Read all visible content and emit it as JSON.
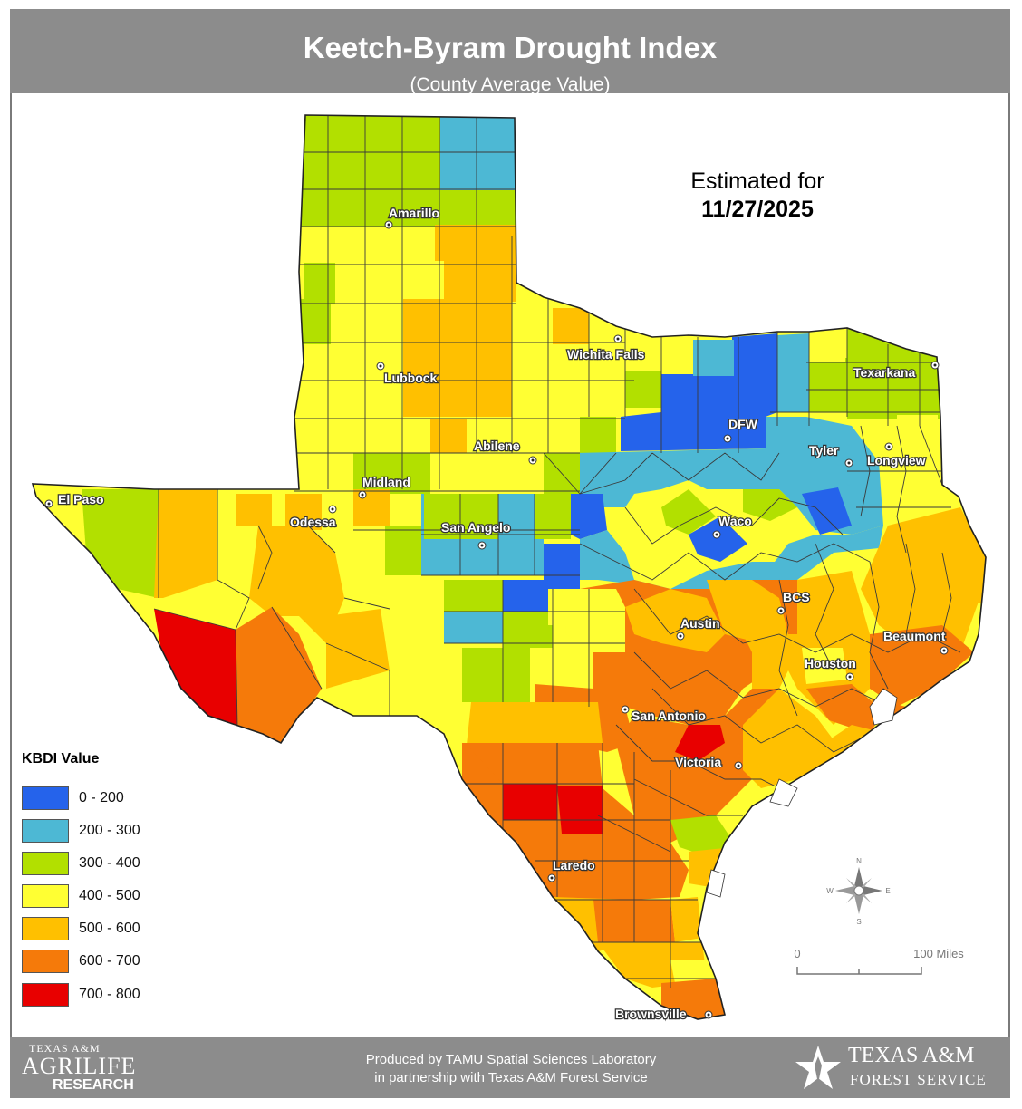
{
  "header": {
    "title": "Keetch-Byram Drought Index",
    "subtitle": "(County Average Value)"
  },
  "estimate": {
    "line1": "Estimated for",
    "date": "11/27/2025"
  },
  "legend": {
    "title": "KBDI Value",
    "items": [
      {
        "label": "0 - 200",
        "color": "#2563eb"
      },
      {
        "label": "200 - 300",
        "color": "#4db8d4"
      },
      {
        "label": "300 - 400",
        "color": "#b2e000"
      },
      {
        "label": "400 - 500",
        "color": "#ffff33"
      },
      {
        "label": "500 - 600",
        "color": "#ffc000"
      },
      {
        "label": "600 - 700",
        "color": "#f57a0a"
      },
      {
        "label": "700 - 800",
        "color": "#e80000"
      }
    ]
  },
  "cities": [
    {
      "name": "Amarillo"
    },
    {
      "name": "Lubbock"
    },
    {
      "name": "Wichita Falls"
    },
    {
      "name": "Texarkana"
    },
    {
      "name": "DFW"
    },
    {
      "name": "Tyler"
    },
    {
      "name": "Longview"
    },
    {
      "name": "Abilene"
    },
    {
      "name": "Midland"
    },
    {
      "name": "Odessa"
    },
    {
      "name": "El Paso"
    },
    {
      "name": "San Angelo"
    },
    {
      "name": "Waco"
    },
    {
      "name": "BCS"
    },
    {
      "name": "Austin"
    },
    {
      "name": "Beaumont"
    },
    {
      "name": "Houston"
    },
    {
      "name": "San Antonio"
    },
    {
      "name": "Victoria"
    },
    {
      "name": "Laredo"
    },
    {
      "name": "Brownsville"
    }
  ],
  "compass": {
    "n": "N",
    "s": "S",
    "e": "E",
    "w": "W"
  },
  "scale": {
    "start": "0",
    "end": "100 Miles"
  },
  "footer": {
    "credit_line1": "Produced by TAMU Spatial Sciences Laboratory",
    "credit_line2": "in partnership with Texas A&M Forest Service",
    "left_logo_line1": "TEXAS A&M",
    "left_logo_line2": "AGRILIFE",
    "left_logo_line3": "RESEARCH",
    "right_logo_line1": "TEXAS A&M",
    "right_logo_line2": "FOREST SERVICE"
  }
}
